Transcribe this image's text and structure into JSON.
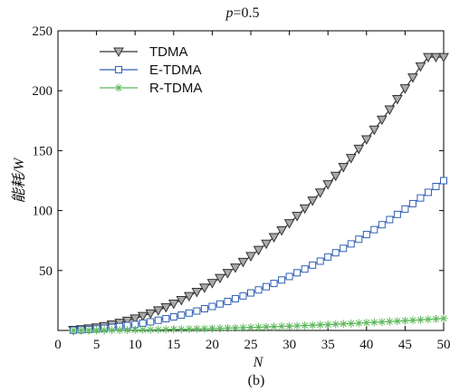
{
  "chart_data": {
    "type": "line",
    "title_param": "p",
    "title_value": "=0.5",
    "xlabel": "N",
    "ylabel": "能耗/W",
    "caption": "(b)",
    "xlim": [
      0,
      50
    ],
    "ylim": [
      0,
      250
    ],
    "xticks": [
      0,
      5,
      10,
      15,
      20,
      25,
      30,
      35,
      40,
      45,
      50
    ],
    "yticks": [
      50,
      100,
      150,
      200,
      250
    ],
    "grid": false,
    "legend_position": "top-left",
    "x": [
      2,
      3,
      4,
      5,
      6,
      7,
      8,
      9,
      10,
      11,
      12,
      13,
      14,
      15,
      16,
      17,
      18,
      19,
      20,
      21,
      22,
      23,
      24,
      25,
      26,
      27,
      28,
      29,
      30,
      31,
      32,
      33,
      34,
      35,
      36,
      37,
      38,
      39,
      40,
      41,
      42,
      43,
      44,
      45,
      46,
      47,
      48,
      49,
      50
    ],
    "series": [
      {
        "name": "TDMA",
        "color": "#333333",
        "fill": "#aaaaaa",
        "marker": "triangle-down",
        "values": [
          0.4,
          0.9,
          1.6,
          2.5,
          3.6,
          4.9,
          6.3,
          8.0,
          9.9,
          12.0,
          14.2,
          16.7,
          19.4,
          22.3,
          25.3,
          28.6,
          32.1,
          35.7,
          39.6,
          43.7,
          47.9,
          52.4,
          57.1,
          62.0,
          67.1,
          72.3,
          77.8,
          83.5,
          89.4,
          95.5,
          101.8,
          108.3,
          115.0,
          121.9,
          129.0,
          136.3,
          143.8,
          151.5,
          159.4,
          167.5,
          175.8,
          184.3,
          193.0,
          201.9,
          211.0,
          220.3,
          229.8,
          239.5,
          249.4
        ]
      },
      {
        "name": "E-TDMA",
        "color": "#2f5fb3",
        "fill": "#ffffff",
        "marker": "square",
        "values": [
          0.2,
          0.5,
          0.8,
          1.3,
          1.8,
          2.5,
          3.2,
          4.1,
          5.0,
          6.1,
          7.2,
          8.5,
          9.8,
          11.3,
          12.8,
          14.5,
          16.2,
          18.1,
          20.0,
          22.1,
          24.2,
          26.5,
          28.8,
          31.3,
          33.8,
          36.5,
          39.2,
          42.1,
          45.0,
          48.1,
          51.2,
          54.5,
          57.8,
          61.3,
          64.8,
          68.5,
          72.2,
          76.1,
          80.0,
          84.1,
          88.2,
          92.5,
          96.8,
          101.3,
          105.8,
          110.5,
          115.2,
          120.1,
          125.0
        ]
      },
      {
        "name": "R-TDMA",
        "color": "#5cb85c",
        "fill": "none",
        "marker": "asterisk",
        "values": [
          0.02,
          0.04,
          0.06,
          0.1,
          0.14,
          0.2,
          0.26,
          0.32,
          0.4,
          0.48,
          0.58,
          0.68,
          0.78,
          0.9,
          1.02,
          1.16,
          1.3,
          1.44,
          1.6,
          1.76,
          1.94,
          2.12,
          2.3,
          2.5,
          2.7,
          2.92,
          3.14,
          3.36,
          3.6,
          3.84,
          4.1,
          4.36,
          4.62,
          4.9,
          5.18,
          5.48,
          5.78,
          6.08,
          6.4,
          6.72,
          7.06,
          7.4,
          7.74,
          8.1,
          8.46,
          8.84,
          9.22,
          9.6,
          10.0
        ]
      }
    ]
  }
}
